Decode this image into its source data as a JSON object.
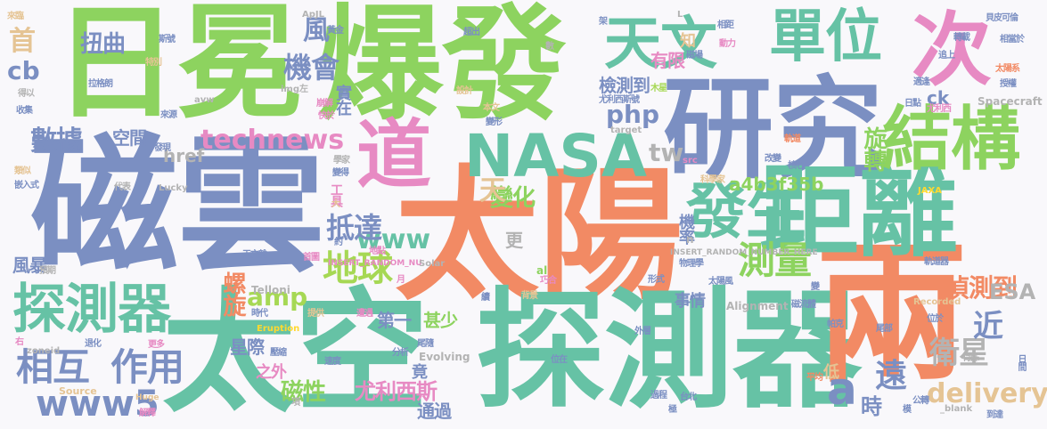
{
  "palette": [
    "#8dd35f",
    "#7b8fc2",
    "#f28a64",
    "#5fc494",
    "#e78ac3",
    "#a6d854",
    "#e5c494",
    "#ffd92f",
    "#66c2a5",
    "#b3b3b3"
  ],
  "words": [
    {
      "text": "磁雲",
      "color": "#7b8fc2"
    },
    {
      "text": "太陽",
      "color": "#f28a64"
    },
    {
      "text": "日冕",
      "color": "#8dd35f"
    },
    {
      "text": "爆發",
      "color": "#8dd35f"
    },
    {
      "text": "研究",
      "color": "#7b8fc2"
    },
    {
      "text": "太空",
      "color": "#66c2a5"
    },
    {
      "text": "探測器",
      "color": "#66c2a5"
    },
    {
      "text": "兩",
      "color": "#f28a64"
    },
    {
      "text": "距離",
      "color": "#66c2a5"
    },
    {
      "text": "NASA",
      "color": "#66c2a5"
    },
    {
      "text": "道",
      "color": "#e78ac3"
    },
    {
      "text": "天文",
      "color": "#66c2a5"
    },
    {
      "text": "單位",
      "color": "#66c2a5"
    },
    {
      "text": "次",
      "color": "#e78ac3"
    },
    {
      "text": "結構",
      "color": "#8dd35f"
    },
    {
      "text": "發生",
      "color": "#66c2a5"
    },
    {
      "text": "探測器",
      "color": "#66c2a5"
    },
    {
      "text": "a",
      "color": "#7b8fc2"
    },
    {
      "text": "地球",
      "color": "#a6d854"
    },
    {
      "text": "測量",
      "color": "#8dd35f"
    },
    {
      "text": "相互",
      "color": "#7b8fc2"
    },
    {
      "text": "作用",
      "color": "#7b8fc2"
    },
    {
      "text": "www5",
      "color": "#7b8fc2"
    },
    {
      "text": "數據",
      "color": "#7b8fc2"
    },
    {
      "text": "technews",
      "color": "#e78ac3"
    },
    {
      "text": "機會",
      "color": "#7b8fc2"
    },
    {
      "text": "扭曲",
      "color": "#7b8fc2"
    },
    {
      "text": "php",
      "color": "#7b8fc2"
    },
    {
      "text": "www",
      "color": "#66c2a5"
    },
    {
      "text": "amp",
      "color": "#a6d854"
    },
    {
      "text": "delivery",
      "color": "#e5c494"
    },
    {
      "text": "衛星",
      "color": "#b3b3b3"
    },
    {
      "text": "偵測到",
      "color": "#f28a64"
    },
    {
      "text": "遠",
      "color": "#7b8fc2"
    },
    {
      "text": "近",
      "color": "#7b8fc2"
    },
    {
      "text": "變化",
      "color": "#8dd35f"
    },
    {
      "text": "抵達",
      "color": "#7b8fc2"
    },
    {
      "text": "尤利西斯",
      "color": "#e78ac3"
    },
    {
      "text": "磁性",
      "color": "#8dd35f"
    },
    {
      "text": "tw",
      "color": "#b3b3b3"
    },
    {
      "text": "旋轉",
      "color": "#8dd35f"
    },
    {
      "text": "風",
      "color": "#7b8fc2"
    },
    {
      "text": "cb",
      "color": "#7b8fc2"
    },
    {
      "text": "首",
      "color": "#e5c494"
    },
    {
      "text": "天",
      "color": "#e5c494"
    },
    {
      "text": "風暴",
      "color": "#7b8fc2"
    },
    {
      "text": "空間",
      "color": "#7b8fc2"
    },
    {
      "text": "螺旋",
      "color": "#f28a64"
    },
    {
      "text": "href",
      "color": "#b3b3b3"
    },
    {
      "text": "a4b3f35b",
      "color": "#8dd35f"
    },
    {
      "text": "檢測到",
      "color": "#7b8fc2"
    },
    {
      "text": "有限",
      "color": "#e78ac3"
    },
    {
      "text": "第一",
      "color": "#7b8fc2"
    },
    {
      "text": "甚少",
      "color": "#8dd35f"
    },
    {
      "text": "ESA",
      "color": "#b3b3b3"
    },
    {
      "text": "時",
      "color": "#7b8fc2"
    },
    {
      "text": "機率",
      "color": "#7b8fc2"
    },
    {
      "text": "事情",
      "color": "#7b8fc2"
    },
    {
      "text": "ck",
      "color": "#7b8fc2"
    },
    {
      "text": "星際",
      "color": "#7b8fc2"
    },
    {
      "text": "通過",
      "color": "#7b8fc2"
    },
    {
      "text": "更",
      "color": "#b3b3b3"
    },
    {
      "text": "知",
      "color": "#e5c494"
    },
    {
      "text": "工具",
      "color": "#e78ac3"
    },
    {
      "text": "實在",
      "color": "#7b8fc2"
    },
    {
      "text": "之外",
      "color": "#e78ac3"
    },
    {
      "text": "竟",
      "color": "#7b8fc2"
    },
    {
      "text": "低",
      "color": "#e5c494"
    },
    {
      "text": "Spacecraft",
      "color": "#b3b3b3"
    },
    {
      "text": "太陽系",
      "color": "#f28a64"
    },
    {
      "text": "INSERT_RANDOM_NUMBER_HERE",
      "color": "#b3b3b3"
    },
    {
      "text": "INSERT_RANDOM_NU",
      "color": "#e78ac3"
    },
    {
      "text": "Telloni",
      "color": "#b3b3b3"
    },
    {
      "text": "Alignment",
      "color": "#b3b3b3"
    },
    {
      "text": "Recorded",
      "color": "#e5c494"
    },
    {
      "text": "Eruption",
      "color": "#ffd92f"
    },
    {
      "text": "Evolving",
      "color": "#b3b3b3"
    },
    {
      "text": "zoneid",
      "color": "#b3b3b3"
    },
    {
      "text": "Source",
      "color": "#e5c494"
    },
    {
      "text": "Huge",
      "color": "#e5c494"
    },
    {
      "text": "Solar",
      "color": "#b3b3b3"
    },
    {
      "text": "Lucky",
      "color": "#b3b3b3"
    },
    {
      "text": "JAXA",
      "color": "#ffd92f"
    },
    {
      "text": "_blank",
      "color": "#b3b3b3"
    },
    {
      "text": "target",
      "color": "#b3b3b3"
    },
    {
      "text": "avw",
      "color": "#b3b3b3"
    },
    {
      "text": "ApJL",
      "color": "#b3b3b3"
    },
    {
      "text": "img左",
      "color": "#b3b3b3"
    },
    {
      "text": "拉格朗",
      "color": "#7b8fc2"
    },
    {
      "text": "尤利西斯號",
      "color": "#7b8fc2"
    },
    {
      "text": "尤利西",
      "color": "#e78ac3"
    },
    {
      "text": "物理學",
      "color": "#7b8fc2"
    },
    {
      "text": "太陽風",
      "color": "#7b8fc2"
    },
    {
      "text": "磁流體",
      "color": "#7b8fc2"
    },
    {
      "text": "天文雜",
      "color": "#7b8fc2"
    },
    {
      "text": "科學家",
      "color": "#e5c494"
    },
    {
      "text": "斯號",
      "color": "#7b8fc2"
    },
    {
      "text": "黃金",
      "color": "#7b8fc2"
    },
    {
      "text": "來源",
      "color": "#7b8fc2"
    },
    {
      "text": "收集",
      "color": "#7b8fc2"
    },
    {
      "text": "得以",
      "color": "#b3b3b3"
    },
    {
      "text": "特別",
      "color": "#e5c494"
    },
    {
      "text": "類似",
      "color": "#e5c494"
    },
    {
      "text": "嵌入式",
      "color": "#7b8fc2"
    },
    {
      "text": "發現",
      "color": "#7b8fc2"
    },
    {
      "text": "代表",
      "color": "#b3b3b3"
    },
    {
      "text": "預期",
      "color": "#b3b3b3"
    },
    {
      "text": "時代",
      "color": "#7b8fc2"
    },
    {
      "text": "提供",
      "color": "#e5c494"
    },
    {
      "text": "遭遇",
      "color": "#e78ac3"
    },
    {
      "text": "退化",
      "color": "#7b8fc2"
    },
    {
      "text": "更多",
      "color": "#e78ac3"
    },
    {
      "text": "解釋",
      "color": "#e78ac3"
    },
    {
      "text": "尾隨",
      "color": "#7b8fc2"
    },
    {
      "text": "分析",
      "color": "#7b8fc2"
    },
    {
      "text": "速度",
      "color": "#7b8fc2"
    },
    {
      "text": "壓縮",
      "color": "#7b8fc2"
    },
    {
      "text": "位在",
      "color": "#7b8fc2"
    },
    {
      "text": "外層",
      "color": "#7b8fc2"
    },
    {
      "text": "帕克",
      "color": "#7b8fc2"
    },
    {
      "text": "尾部",
      "color": "#7b8fc2"
    },
    {
      "text": "位於",
      "color": "#7b8fc2"
    },
    {
      "text": "公轉",
      "color": "#7b8fc2"
    },
    {
      "text": "到達",
      "color": "#7b8fc2"
    },
    {
      "text": "台北",
      "color": "#7b8fc2"
    },
    {
      "text": "平均",
      "color": "#f28a64"
    },
    {
      "text": "軌道器",
      "color": "#7b8fc2"
    },
    {
      "text": "軌道",
      "color": "#f28a64"
    },
    {
      "text": "日點",
      "color": "#7b8fc2"
    },
    {
      "text": "核心",
      "color": "#7b8fc2"
    },
    {
      "text": "改變",
      "color": "#7b8fc2"
    },
    {
      "text": "轉載",
      "color": "#7b8fc2"
    },
    {
      "text": "相當於",
      "color": "#7b8fc2"
    },
    {
      "text": "授權",
      "color": "#7b8fc2"
    },
    {
      "text": "追上",
      "color": "#7b8fc2"
    },
    {
      "text": "適逢",
      "color": "#7b8fc2"
    },
    {
      "text": "貝皮可倫",
      "color": "#7b8fc2"
    },
    {
      "text": "來臨",
      "color": "#e5c494"
    },
    {
      "text": "超出",
      "color": "#7b8fc2"
    },
    {
      "text": "設計",
      "color": "#e5c494"
    },
    {
      "text": "崩解",
      "color": "#e78ac3"
    },
    {
      "text": "快於",
      "color": "#e78ac3"
    },
    {
      "text": "本文",
      "color": "#e5c494"
    },
    {
      "text": "變形",
      "color": "#7b8fc2"
    },
    {
      "text": "木星",
      "color": "#a6d854"
    },
    {
      "text": "磁場",
      "color": "#7b8fc2"
    },
    {
      "text": "動力",
      "color": "#e78ac3"
    },
    {
      "text": "相距",
      "color": "#7b8fc2"
    },
    {
      "text": "學家",
      "color": "#b3b3b3"
    },
    {
      "text": "變得",
      "color": "#7b8fc2"
    },
    {
      "text": "地點",
      "color": "#e78ac3"
    },
    {
      "text": "首圖",
      "color": "#e78ac3"
    },
    {
      "text": "形式",
      "color": "#7b8fc2"
    },
    {
      "text": "背景",
      "color": "#e5c494"
    },
    {
      "text": "巧合",
      "color": "#e78ac3"
    },
    {
      "text": "過程",
      "color": "#7b8fc2"
    },
    {
      "text": "極",
      "color": "#7b8fc2"
    },
    {
      "text": "特殊",
      "color": "#b3b3b3"
    },
    {
      "text": "al",
      "color": "#8dd35f"
    },
    {
      "text": "src",
      "color": "#e78ac3"
    },
    {
      "text": "n",
      "color": "#b3b3b3"
    },
    {
      "text": "大",
      "color": "#e5c494"
    },
    {
      "text": "架",
      "color": "#7b8fc2"
    },
    {
      "text": "數",
      "color": "#b3b3b3"
    },
    {
      "text": "項",
      "color": "#b3b3b3"
    },
    {
      "text": "約",
      "color": "#7b8fc2"
    },
    {
      "text": "續",
      "color": "#7b8fc2"
    },
    {
      "text": "月",
      "color": "#e78ac3"
    },
    {
      "text": "右",
      "color": "#e78ac3"
    },
    {
      "text": "L",
      "color": "#b3b3b3"
    },
    {
      "text": "變",
      "color": "#7b8fc2"
    },
    {
      "text": "日間",
      "color": "#7b8fc2"
    },
    {
      "text": "模",
      "color": "#7b8fc2"
    }
  ]
}
